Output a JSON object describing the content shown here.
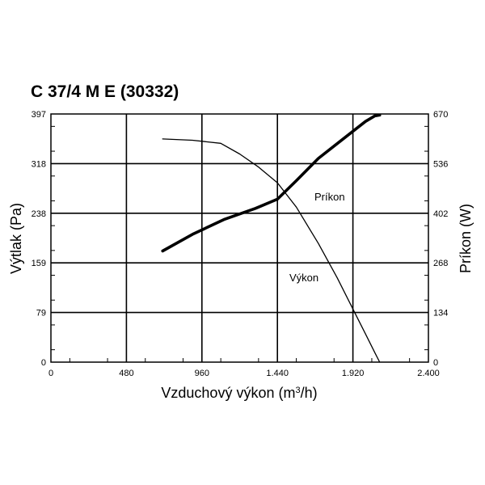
{
  "chart_data": {
    "type": "line",
    "title": "C 37/4  M E (30332)",
    "xlabel": "Vzduchový výkon (m",
    "xlabel_sup": "3",
    "xlabel_suffix": "/h)",
    "ylabel_left": "Výtlak (Pa)",
    "ylabel_right": "Príkon (W)",
    "xlim": [
      0,
      2400
    ],
    "ylim_left": [
      0,
      397
    ],
    "ylim_right": [
      0,
      670
    ],
    "x_ticks": [
      "0",
      "480",
      "960",
      "1.440",
      "1.920",
      "2.400"
    ],
    "y_left_ticks": [
      "0",
      "79",
      "159",
      "238",
      "318",
      "397"
    ],
    "y_right_ticks": [
      "0",
      "134",
      "268",
      "402",
      "536",
      "670"
    ],
    "grid": true,
    "series": [
      {
        "name": "Výkon",
        "axis": "left",
        "x": [
          710,
          900,
          1080,
          1200,
          1320,
          1440,
          1560,
          1700,
          1820,
          1920,
          2000,
          2060,
          2090
        ],
        "y": [
          357,
          355,
          350,
          333,
          312,
          287,
          248,
          190,
          135,
          85,
          45,
          15,
          0
        ]
      },
      {
        "name": "Príkon",
        "axis": "right",
        "x": [
          710,
          900,
          1100,
          1300,
          1440,
          1560,
          1700,
          1850,
          2000,
          2060,
          2090
        ],
        "y": [
          300,
          345,
          385,
          415,
          440,
          490,
          550,
          600,
          650,
          665,
          667
        ]
      }
    ]
  }
}
